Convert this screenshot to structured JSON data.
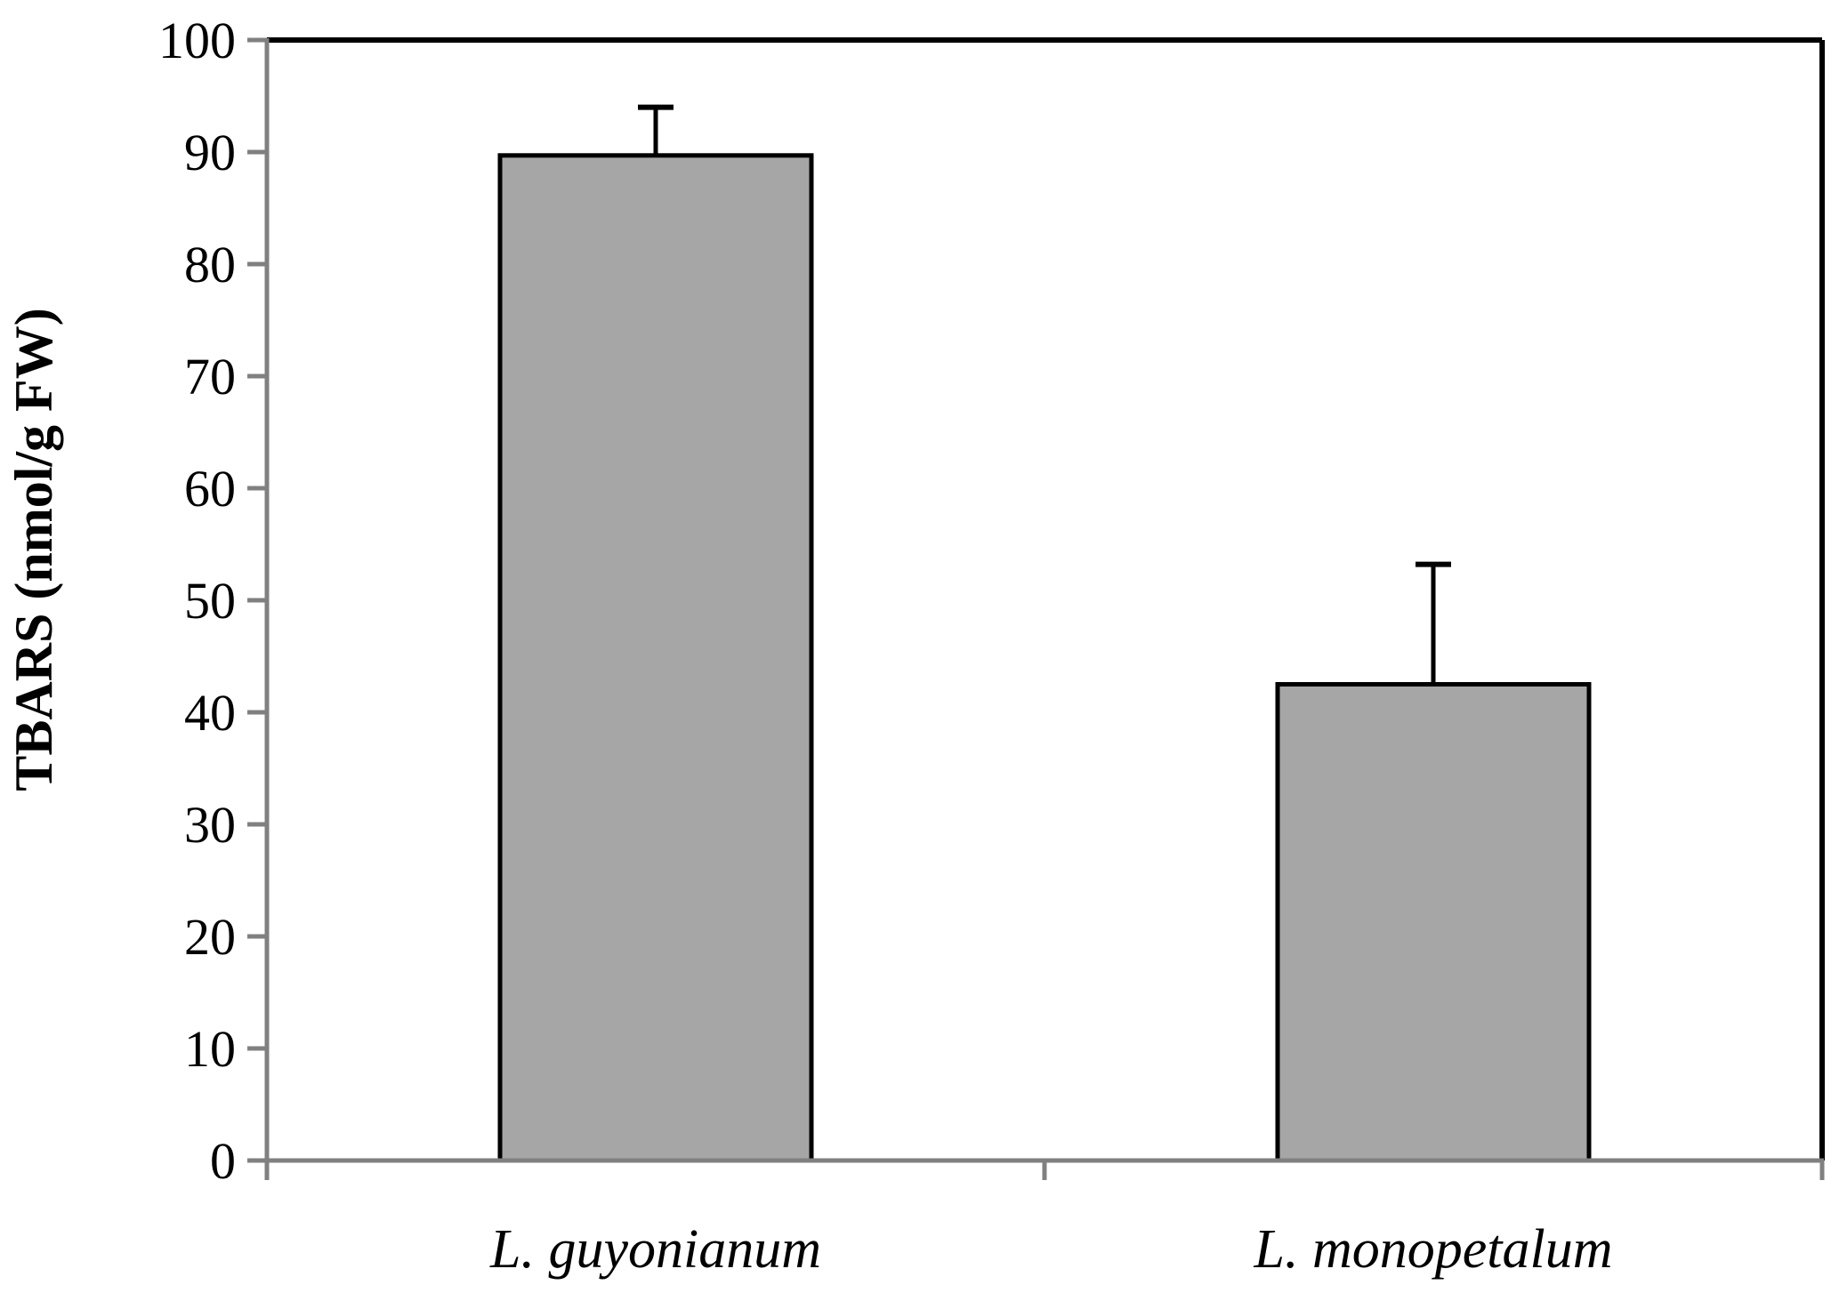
{
  "chart_data": {
    "type": "bar",
    "categories": [
      "L. guyonianum",
      "L. monopetalum"
    ],
    "values": [
      89.7,
      42.5
    ],
    "errors": [
      4.3,
      10.7
    ],
    "title": "",
    "xlabel": "",
    "ylabel": "TBARS (nmol/g FW)",
    "ylim": [
      0,
      100
    ],
    "yticks": [
      "0",
      "10",
      "20",
      "30",
      "40",
      "50",
      "60",
      "70",
      "80",
      "90",
      "100"
    ],
    "grid": false,
    "legend": "none",
    "bar_color": "#a6a6a6",
    "bar_edge_color": "#000000",
    "axis_color": "#808080",
    "frame_color": "#000000"
  }
}
